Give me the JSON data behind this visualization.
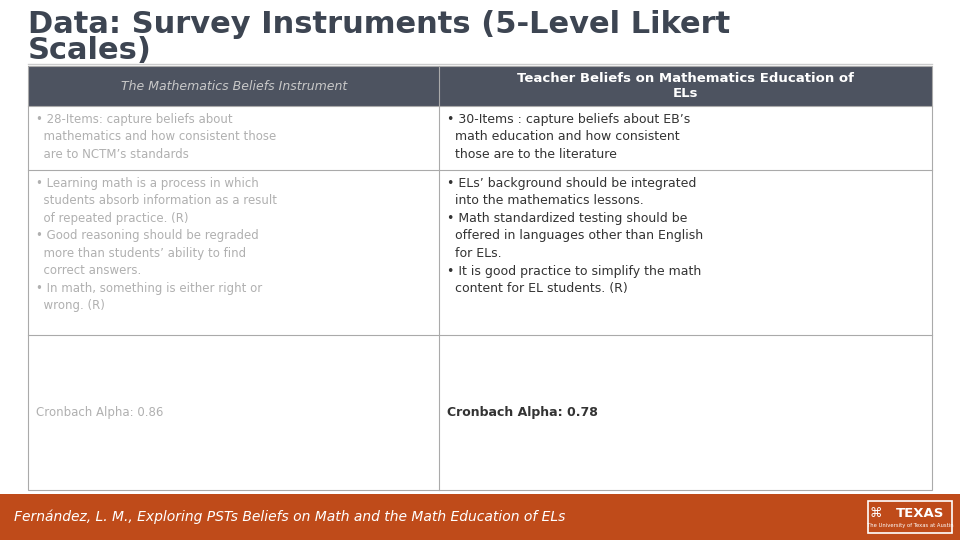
{
  "title_line1": "Data: Survey Instruments (5-Level Likert",
  "title_line2": "Scales)",
  "title_fontsize": 22,
  "title_color": "#3d4552",
  "bg_color": "#ffffff",
  "footer_bg": "#bf4b1a",
  "footer_text": "Fernández, L. M., Exploring PSTs Beliefs on Math and the Math Education of ELs",
  "footer_fontsize": 10,
  "footer_color": "#ffffff",
  "header_bg": "#4d5360",
  "header_text_color": "#c8c8c8",
  "col2_header_color": "#ffffff",
  "col1_header": "The Mathematics Beliefs Instrument",
  "col2_header": "Teacher Beliefs on Mathematics Education of\nELs",
  "table_border_color": "#aaaaaa",
  "col1_text_color": "#b0b0b0",
  "col2_text_color": "#333333",
  "row1_col1_lines": [
    "• 28-Items: capture beliefs about",
    "  mathematics and how consistent those",
    "  are to NCTM’s standards"
  ],
  "row1_col2_lines": [
    "• 30-Items : capture beliefs about EB’s",
    "  math education and how consistent",
    "  those are to the literature"
  ],
  "row2_col1_lines": [
    "• Learning math is a process in which",
    "  students absorb information as a result",
    "  of repeated practice. (R)",
    "• Good reasoning should be regraded",
    "  more than students’ ability to find",
    "  correct answers.",
    "• In math, something is either right or",
    "  wrong. (R)"
  ],
  "row2_col2_lines": [
    "• ELs’ background should be integrated",
    "  into the mathematics lessons.",
    "• Math standardized testing should be",
    "  offered in languages other than English",
    "  for ELs.",
    "• It is good practice to simplify the math",
    "  content for EL students. (R)"
  ],
  "row3_col1": "Cronbach Alpha: 0.86",
  "row3_col2": "Cronbach Alpha: 0.78",
  "cell_bg_color": "#ffffff",
  "divider_color": "#999999",
  "texas_text": "TEXAS",
  "texas_sub": "The University of Texas at Austin"
}
